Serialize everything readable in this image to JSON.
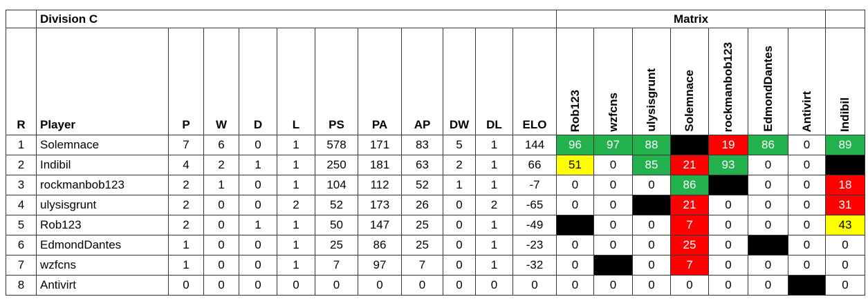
{
  "header": {
    "title": "Division C",
    "matrix_title": "Matrix"
  },
  "table": {
    "columns": [
      "R",
      "Player",
      "P",
      "W",
      "D",
      "L",
      "PS",
      "PA",
      "AP",
      "DW",
      "DL",
      "ELO"
    ],
    "matrix_columns": [
      "Rob123",
      "wzfcns",
      "ulysisgrunt",
      "Solemnace",
      "rockmanbob123",
      "EdmondDantes",
      "Antivirt",
      "Indibil"
    ],
    "rows": [
      {
        "cells": [
          1,
          "Solemnace",
          7,
          6,
          0,
          1,
          578,
          171,
          83,
          5,
          1,
          144
        ],
        "matrix": [
          96,
          97,
          88,
          null,
          19,
          86,
          0,
          89
        ],
        "matrix_colors": [
          "#22b14c",
          "#22b14c",
          "#22b14c",
          "#000000",
          "#ff0000",
          "#22b14c",
          null,
          "#22b14c"
        ]
      },
      {
        "cells": [
          2,
          "Indibil",
          4,
          2,
          1,
          1,
          250,
          181,
          63,
          2,
          1,
          66
        ],
        "matrix": [
          51,
          0,
          85,
          21,
          93,
          0,
          0,
          null
        ],
        "matrix_colors": [
          "#ffff00",
          null,
          "#22b14c",
          "#ff0000",
          "#22b14c",
          null,
          null,
          "#000000"
        ]
      },
      {
        "cells": [
          3,
          "rockmanbob123",
          2,
          1,
          0,
          1,
          104,
          112,
          52,
          1,
          1,
          -7
        ],
        "matrix": [
          0,
          0,
          0,
          86,
          null,
          0,
          0,
          18
        ],
        "matrix_colors": [
          null,
          null,
          null,
          "#22b14c",
          "#000000",
          null,
          null,
          "#ff0000"
        ]
      },
      {
        "cells": [
          4,
          "ulysisgrunt",
          2,
          0,
          0,
          2,
          52,
          173,
          26,
          0,
          2,
          -65
        ],
        "matrix": [
          0,
          0,
          null,
          21,
          0,
          0,
          0,
          31
        ],
        "matrix_colors": [
          null,
          null,
          "#000000",
          "#ff0000",
          null,
          null,
          null,
          "#ff0000"
        ]
      },
      {
        "cells": [
          5,
          "Rob123",
          2,
          0,
          1,
          1,
          50,
          147,
          25,
          0,
          1,
          -49
        ],
        "matrix": [
          null,
          0,
          0,
          7,
          0,
          0,
          0,
          43
        ],
        "matrix_colors": [
          "#000000",
          null,
          null,
          "#ff0000",
          null,
          null,
          null,
          "#ffff00"
        ]
      },
      {
        "cells": [
          6,
          "EdmondDantes",
          1,
          0,
          0,
          1,
          25,
          86,
          25,
          0,
          1,
          -23
        ],
        "matrix": [
          0,
          0,
          0,
          25,
          0,
          null,
          0,
          0
        ],
        "matrix_colors": [
          null,
          null,
          null,
          "#ff0000",
          null,
          "#000000",
          null,
          null
        ]
      },
      {
        "cells": [
          7,
          "wzfcns",
          1,
          0,
          0,
          1,
          7,
          97,
          7,
          0,
          1,
          -32
        ],
        "matrix": [
          0,
          null,
          0,
          7,
          0,
          0,
          0,
          0
        ],
        "matrix_colors": [
          null,
          "#000000",
          null,
          "#ff0000",
          null,
          null,
          null,
          null
        ]
      },
      {
        "cells": [
          8,
          "Antivirt",
          0,
          0,
          0,
          0,
          0,
          0,
          0,
          0,
          0,
          0
        ],
        "matrix": [
          0,
          0,
          0,
          0,
          0,
          0,
          null,
          0
        ],
        "matrix_colors": [
          null,
          null,
          null,
          null,
          null,
          null,
          "#000000",
          null
        ]
      }
    ]
  }
}
